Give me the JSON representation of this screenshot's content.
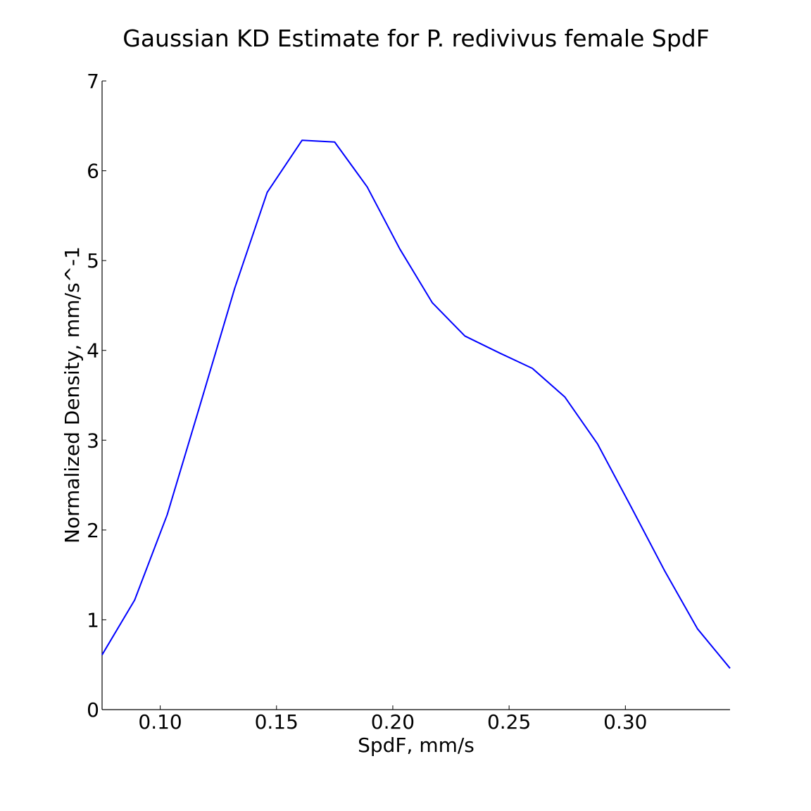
{
  "chart_data": {
    "type": "line",
    "title": "Gaussian KD Estimate for P. redivivus female SpdF",
    "xlabel": "SpdF, mm/s",
    "ylabel": "Normalized Density, mm/s^-1",
    "xlim": [
      0.075,
      0.345
    ],
    "ylim": [
      0,
      7
    ],
    "xticks": [
      0.1,
      0.15,
      0.2,
      0.25,
      0.3
    ],
    "xtick_labels": [
      "0.10",
      "0.15",
      "0.20",
      "0.25",
      "0.30"
    ],
    "yticks": [
      0,
      1,
      2,
      3,
      4,
      5,
      6,
      7
    ],
    "ytick_labels": [
      "0",
      "1",
      "2",
      "3",
      "4",
      "5",
      "6",
      "7"
    ],
    "grid": false,
    "series": [
      {
        "color": "#0000ff",
        "x": [
          0.075,
          0.089,
          0.103,
          0.117,
          0.132,
          0.146,
          0.161,
          0.175,
          0.189,
          0.203,
          0.217,
          0.231,
          0.246,
          0.26,
          0.274,
          0.288,
          0.302,
          0.317,
          0.331,
          0.345
        ],
        "y": [
          0.61,
          1.22,
          2.17,
          3.38,
          4.69,
          5.76,
          6.34,
          6.32,
          5.82,
          5.13,
          4.53,
          4.16,
          3.97,
          3.8,
          3.48,
          2.96,
          2.28,
          1.54,
          0.9,
          0.46
        ]
      }
    ]
  }
}
